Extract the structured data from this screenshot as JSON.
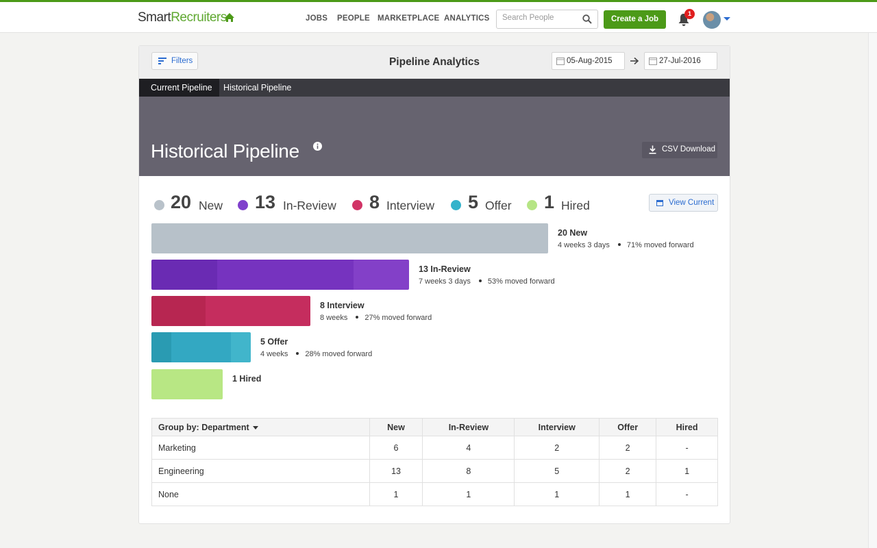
{
  "header": {
    "logo_part1": "Smart",
    "logo_part2": "Recruiters",
    "nav": [
      "JOBS",
      "PEOPLE",
      "MARKETPLACE",
      "ANALYTICS"
    ],
    "search_placeholder": "Search People",
    "create_job_label": "Create a Job",
    "notification_count": "1"
  },
  "card": {
    "filters_label": "Filters",
    "title": "Pipeline Analytics",
    "date_from": "05-Aug-2015",
    "date_to": "27-Jul-2016"
  },
  "tabs": [
    "Current Pipeline",
    "Historical Pipeline"
  ],
  "banner": {
    "title": "Historical Pipeline",
    "csv_label": "CSV Download"
  },
  "summary": [
    {
      "count": "20",
      "label": "New",
      "color": "#b9c2ca"
    },
    {
      "count": "13",
      "label": "In-Review",
      "color": "#8040cc"
    },
    {
      "count": "8",
      "label": "Interview",
      "color": "#d13466"
    },
    {
      "count": "5",
      "label": "Offer",
      "color": "#35b3cb"
    },
    {
      "count": "1",
      "label": "Hired",
      "color": "#b6e585"
    }
  ],
  "view_current_label": "View Current",
  "funnel": [
    {
      "title": "20 New",
      "duration": "4 weeks 3 days",
      "moved": "71% moved forward",
      "count": 20,
      "segments": [
        {
          "share": 1.0,
          "color": "#b7c1c9"
        }
      ]
    },
    {
      "title": "13 In-Review",
      "duration": "7 weeks 3 days",
      "moved": "53% moved forward",
      "count": 13,
      "segments": [
        {
          "share": 0.254,
          "color": "#6a2bb3"
        },
        {
          "share": 0.529,
          "color": "#7633bf"
        },
        {
          "share": 0.217,
          "color": "#8340c8"
        }
      ]
    },
    {
      "title": "8 Interview",
      "duration": "8 weeks",
      "moved": "27% moved forward",
      "count": 8,
      "segments": [
        {
          "share": 0.339,
          "color": "#b72651"
        },
        {
          "share": 0.661,
          "color": "#c52d5e"
        }
      ]
    },
    {
      "title": "5 Offer",
      "duration": "4 weeks",
      "moved": "28% moved forward",
      "count": 5,
      "segments": [
        {
          "share": 0.2,
          "color": "#2a9bb2"
        },
        {
          "share": 0.6,
          "color": "#33a8c2"
        },
        {
          "share": 0.2,
          "color": "#41b5cb"
        }
      ]
    },
    {
      "title": "1 Hired",
      "duration": "",
      "moved": "",
      "count": 1,
      "segments": [
        {
          "share": 1.0,
          "color": "#b8e784"
        }
      ]
    }
  ],
  "table": {
    "group_by_label": "Group by: Department",
    "columns": [
      "New",
      "In-Review",
      "Interview",
      "Offer",
      "Hired"
    ],
    "rows": [
      {
        "name": "Marketing",
        "values": [
          "6",
          "4",
          "2",
          "2",
          "-"
        ]
      },
      {
        "name": "Engineering",
        "values": [
          "13",
          "8",
          "5",
          "2",
          "1"
        ]
      },
      {
        "name": "None",
        "values": [
          "1",
          "1",
          "1",
          "1",
          "-"
        ]
      }
    ]
  }
}
